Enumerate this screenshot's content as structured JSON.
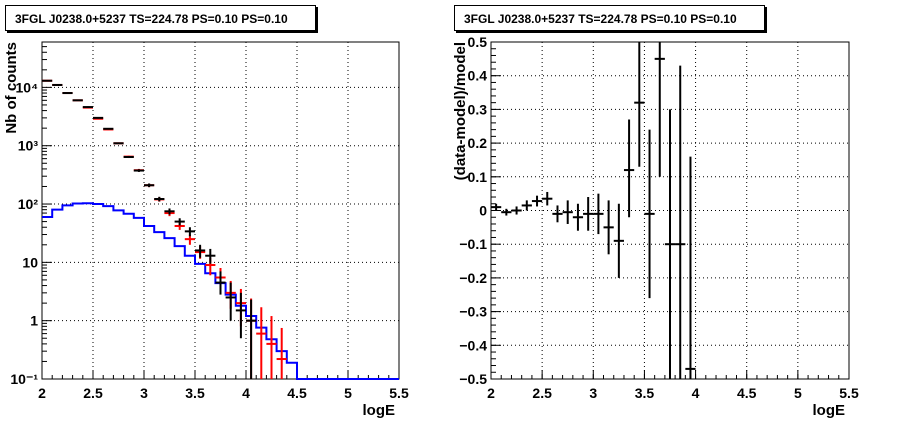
{
  "chart_data": [
    {
      "type": "line",
      "title": "3FGL J0238.0+5237 TS=224.78 PS=0.10 PS=0.10",
      "xlabel": "logE",
      "ylabel": "Nb of counts",
      "xlim": [
        2,
        5.5
      ],
      "ylim": [
        0.1,
        60000
      ],
      "yscale": "log",
      "grid": true,
      "x_ticks": [
        "2",
        "2.5",
        "3",
        "3.5",
        "4",
        "4.5",
        "5",
        "5.5"
      ],
      "y_ticks": [
        "10⁻¹",
        "1",
        "10",
        "10²",
        "10³",
        "10⁴"
      ],
      "colors": {
        "model": "#0000ff",
        "data_red": "#ff0000",
        "data_black": "#000000"
      },
      "series": [
        {
          "kind": "step",
          "color": "#0000ff",
          "x_edges": [
            2.0,
            2.1,
            2.2,
            2.3,
            2.4,
            2.5,
            2.6,
            2.7,
            2.8,
            2.9,
            3.0,
            3.1,
            3.2,
            3.3,
            3.4,
            3.5,
            3.6,
            3.7,
            3.8,
            3.9,
            4.0,
            4.1,
            4.2,
            4.3,
            4.4,
            4.5,
            5.5
          ],
          "values": [
            60,
            80,
            95,
            102,
            103,
            100,
            92,
            78,
            68,
            58,
            42,
            33,
            26,
            19,
            13,
            9.4,
            6.5,
            4.4,
            2.8,
            1.8,
            1.2,
            0.76,
            0.48,
            0.3,
            0.19,
            0.1
          ]
        },
        {
          "kind": "errorbars",
          "color": "#ff0000",
          "points": [
            {
              "x": 2.05,
              "y": 13000,
              "ylo": 12800,
              "yhi": 13200
            },
            {
              "x": 2.15,
              "y": 11000,
              "ylo": 10800,
              "yhi": 11200
            },
            {
              "x": 2.25,
              "y": 8000,
              "ylo": 7850,
              "yhi": 8150
            },
            {
              "x": 2.35,
              "y": 6000,
              "ylo": 5880,
              "yhi": 6120
            },
            {
              "x": 2.45,
              "y": 4500,
              "ylo": 4380,
              "yhi": 4620
            },
            {
              "x": 2.55,
              "y": 2900,
              "ylo": 2820,
              "yhi": 2980
            },
            {
              "x": 2.65,
              "y": 1900,
              "ylo": 1850,
              "yhi": 1950
            },
            {
              "x": 2.75,
              "y": 1100,
              "ylo": 1070,
              "yhi": 1130
            },
            {
              "x": 2.85,
              "y": 650,
              "ylo": 625,
              "yhi": 675
            },
            {
              "x": 2.95,
              "y": 380,
              "ylo": 360,
              "yhi": 400
            },
            {
              "x": 3.05,
              "y": 210,
              "ylo": 195,
              "yhi": 225
            },
            {
              "x": 3.15,
              "y": 120,
              "ylo": 110,
              "yhi": 131
            },
            {
              "x": 3.25,
              "y": 70,
              "ylo": 62,
              "yhi": 78
            },
            {
              "x": 3.35,
              "y": 42,
              "ylo": 36,
              "yhi": 49
            },
            {
              "x": 3.45,
              "y": 25,
              "ylo": 20,
              "yhi": 30
            },
            {
              "x": 3.55,
              "y": 15,
              "ylo": 11.5,
              "yhi": 19
            },
            {
              "x": 3.65,
              "y": 9,
              "ylo": 6,
              "yhi": 12
            },
            {
              "x": 3.75,
              "y": 5.5,
              "ylo": 3.5,
              "yhi": 8
            },
            {
              "x": 3.85,
              "y": 3,
              "ylo": 1.6,
              "yhi": 4.8
            },
            {
              "x": 3.95,
              "y": 2,
              "ylo": 0.8,
              "yhi": 3.5
            },
            {
              "x": 4.05,
              "y": 1,
              "ylo": 0.1,
              "yhi": 2.4
            },
            {
              "x": 4.15,
              "y": 0.6,
              "ylo": 0.1,
              "yhi": 1.7
            },
            {
              "x": 4.25,
              "y": 0.4,
              "ylo": 0.1,
              "yhi": 1.2
            },
            {
              "x": 4.35,
              "y": 0.22,
              "ylo": 0.1,
              "yhi": 0.75
            }
          ]
        },
        {
          "kind": "errorbars",
          "color": "#000000",
          "points": [
            {
              "x": 2.05,
              "y": 13000,
              "ylo": 12800,
              "yhi": 13200
            },
            {
              "x": 2.15,
              "y": 11000,
              "ylo": 10800,
              "yhi": 11200
            },
            {
              "x": 2.25,
              "y": 8000,
              "ylo": 7850,
              "yhi": 8150
            },
            {
              "x": 2.35,
              "y": 6000,
              "ylo": 5880,
              "yhi": 6120
            },
            {
              "x": 2.45,
              "y": 4600,
              "ylo": 4480,
              "yhi": 4720
            },
            {
              "x": 2.55,
              "y": 3000,
              "ylo": 2920,
              "yhi": 3080
            },
            {
              "x": 2.65,
              "y": 1950,
              "ylo": 1900,
              "yhi": 2000
            },
            {
              "x": 2.75,
              "y": 1100,
              "ylo": 1070,
              "yhi": 1130
            },
            {
              "x": 2.85,
              "y": 640,
              "ylo": 615,
              "yhi": 665
            },
            {
              "x": 2.95,
              "y": 375,
              "ylo": 355,
              "yhi": 395
            },
            {
              "x": 3.05,
              "y": 210,
              "ylo": 195,
              "yhi": 225
            },
            {
              "x": 3.15,
              "y": 122,
              "ylo": 111,
              "yhi": 133
            },
            {
              "x": 3.25,
              "y": 75,
              "ylo": 66,
              "yhi": 84
            },
            {
              "x": 3.35,
              "y": 50,
              "ylo": 43,
              "yhi": 57
            },
            {
              "x": 3.45,
              "y": 34,
              "ylo": 28,
              "yhi": 40
            },
            {
              "x": 3.55,
              "y": 16,
              "ylo": 12,
              "yhi": 20
            },
            {
              "x": 3.65,
              "y": 13,
              "ylo": 9.5,
              "yhi": 17
            },
            {
              "x": 3.75,
              "y": 4.5,
              "ylo": 2.8,
              "yhi": 7
            },
            {
              "x": 3.85,
              "y": 2.5,
              "ylo": 1.0,
              "yhi": 4.5
            },
            {
              "x": 3.95,
              "y": 1.5,
              "ylo": 0.5,
              "yhi": 3.0
            },
            {
              "x": 4.05,
              "y": 1,
              "ylo": 0.1,
              "yhi": 2.3
            }
          ]
        }
      ]
    },
    {
      "type": "scatter",
      "title": "3FGL J0238.0+5237 TS=224.78 PS=0.10 PS=0.10",
      "xlabel": "logE",
      "ylabel": "(data-model)/model",
      "xlim": [
        2,
        5.5
      ],
      "ylim": [
        -0.5,
        0.5
      ],
      "grid": true,
      "x_ticks": [
        "2",
        "2.5",
        "3",
        "3.5",
        "4",
        "4.5",
        "5",
        "5.5"
      ],
      "y_ticks": [
        "−0.5",
        "−0.4",
        "−0.3",
        "−0.2",
        "−0.1",
        "0",
        "0.1",
        "0.2",
        "0.3",
        "0.4",
        "0.5"
      ],
      "series": [
        {
          "kind": "errorbars",
          "color": "#000000",
          "points": [
            {
              "x": 2.05,
              "y": 0.01,
              "ylo": 0.0,
              "yhi": 0.02
            },
            {
              "x": 2.15,
              "y": -0.005,
              "ylo": -0.015,
              "yhi": 0.005
            },
            {
              "x": 2.25,
              "y": 0.0,
              "ylo": -0.012,
              "yhi": 0.012
            },
            {
              "x": 2.35,
              "y": 0.015,
              "ylo": 0.0,
              "yhi": 0.03
            },
            {
              "x": 2.45,
              "y": 0.028,
              "ylo": 0.012,
              "yhi": 0.044
            },
            {
              "x": 2.55,
              "y": 0.035,
              "ylo": 0.015,
              "yhi": 0.055
            },
            {
              "x": 2.65,
              "y": -0.01,
              "ylo": -0.035,
              "yhi": 0.015
            },
            {
              "x": 2.75,
              "y": -0.005,
              "ylo": -0.04,
              "yhi": 0.03
            },
            {
              "x": 2.85,
              "y": -0.02,
              "ylo": -0.06,
              "yhi": 0.02
            },
            {
              "x": 2.95,
              "y": -0.01,
              "ylo": -0.06,
              "yhi": 0.04
            },
            {
              "x": 3.05,
              "y": -0.01,
              "ylo": -0.07,
              "yhi": 0.05
            },
            {
              "x": 3.15,
              "y": -0.05,
              "ylo": -0.13,
              "yhi": 0.03
            },
            {
              "x": 3.25,
              "y": -0.09,
              "ylo": -0.2,
              "yhi": 0.02
            },
            {
              "x": 3.35,
              "y": 0.12,
              "ylo": -0.02,
              "yhi": 0.27
            },
            {
              "x": 3.45,
              "y": 0.32,
              "ylo": 0.13,
              "yhi": 0.5
            },
            {
              "x": 3.55,
              "y": -0.01,
              "ylo": -0.26,
              "yhi": 0.24
            },
            {
              "x": 3.65,
              "y": 0.45,
              "ylo": 0.1,
              "yhi": 0.5
            },
            {
              "x": 3.75,
              "y": -0.1,
              "ylo": -0.5,
              "yhi": 0.3
            },
            {
              "x": 3.85,
              "y": -0.1,
              "ylo": -0.5,
              "yhi": 0.43
            },
            {
              "x": 3.95,
              "y": -0.47,
              "ylo": -0.5,
              "yhi": 0.16
            }
          ]
        }
      ]
    }
  ]
}
